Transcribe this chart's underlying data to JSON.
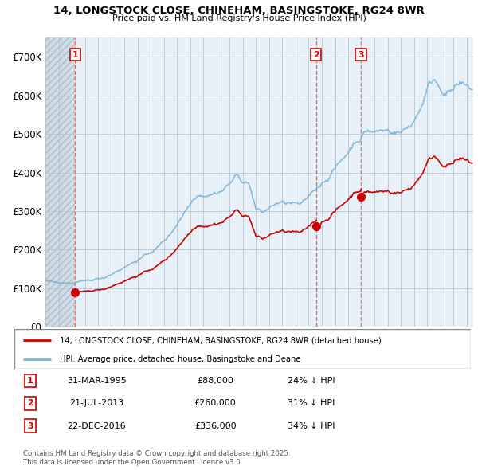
{
  "title": "14, LONGSTOCK CLOSE, CHINEHAM, BASINGSTOKE, RG24 8WR",
  "subtitle": "Price paid vs. HM Land Registry's House Price Index (HPI)",
  "legend_line1": "14, LONGSTOCK CLOSE, CHINEHAM, BASINGSTOKE, RG24 8WR (detached house)",
  "legend_line2": "HPI: Average price, detached house, Basingstoke and Deane",
  "footer": "Contains HM Land Registry data © Crown copyright and database right 2025.\nThis data is licensed under the Open Government Licence v3.0.",
  "sales": [
    {
      "num": 1,
      "date": "31-MAR-1995",
      "price": 88000,
      "pct": "24%",
      "x_year": 1995.25
    },
    {
      "num": 2,
      "date": "21-JUL-2013",
      "price": 260000,
      "pct": "31%",
      "x_year": 2013.55
    },
    {
      "num": 3,
      "date": "22-DEC-2016",
      "price": 336000,
      "pct": "34%",
      "x_year": 2016.97
    }
  ],
  "hpi_color": "#7ab4d8",
  "price_color": "#cc0000",
  "marker_color": "#cc0000",
  "background_plot": "#e8f0f8",
  "grid_color": "#b0bec8",
  "dashed_line_color": "#cc6666",
  "ylim": [
    0,
    750000
  ],
  "yticks": [
    0,
    100000,
    200000,
    300000,
    400000,
    500000,
    600000,
    700000
  ],
  "ytick_labels": [
    "£0",
    "£100K",
    "£200K",
    "£300K",
    "£400K",
    "£500K",
    "£600K",
    "£700K"
  ],
  "xlim_start": 1993.0,
  "xlim_end": 2025.5,
  "hatch_end": 1995.25
}
